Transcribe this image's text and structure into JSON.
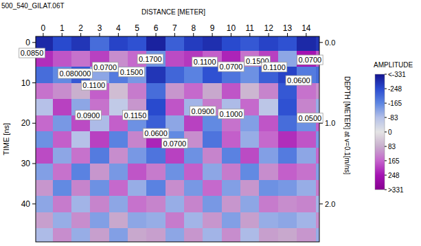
{
  "chart_data": {
    "type": "heatmap",
    "title": "500_540_GILAT.06T",
    "x_label": "DISTANCE [METER]",
    "y_label": "TIME [ns]",
    "y2_label": "DEPTH [METER] at v=0.1[m/ns]",
    "xlim": [
      -0.4,
      14.7
    ],
    "xticks": [
      0,
      1,
      2,
      3,
      4,
      5,
      6,
      7,
      8,
      9,
      10,
      11,
      12,
      13,
      14
    ],
    "ylim": [
      -1.5,
      49.4
    ],
    "yticks": [
      0,
      10,
      20,
      30,
      40
    ],
    "y2lim": [
      -0.075,
      2.47
    ],
    "y2ticks": [
      {
        "value": 0,
        "label": "0.0"
      },
      {
        "value": 1,
        "label": "1.0"
      },
      {
        "value": 2,
        "label": "2.0"
      }
    ],
    "x": [
      0,
      1,
      2,
      3,
      4,
      5,
      6,
      7,
      8,
      9,
      10,
      11,
      12,
      13,
      14,
      15
    ],
    "y": [
      0,
      4,
      8,
      12,
      16,
      20,
      24,
      28,
      32,
      36,
      40,
      44,
      48
    ],
    "cells": [
      [
        -300,
        -250,
        -280,
        -200,
        -260,
        -240,
        -310,
        -220,
        -270,
        -290,
        -250,
        -230,
        -260,
        -240,
        -300,
        -280
      ],
      [
        220,
        180,
        150,
        200,
        120,
        160,
        -150,
        190,
        210,
        170,
        230,
        150,
        200,
        -120,
        250,
        180
      ],
      [
        -200,
        -160,
        -230,
        -120,
        -180,
        -140,
        -280,
        -210,
        -170,
        -240,
        -190,
        -150,
        -220,
        -260,
        -180,
        -200
      ],
      [
        150,
        120,
        80,
        170,
        60,
        140,
        -200,
        110,
        160,
        90,
        180,
        70,
        130,
        -230,
        150,
        120
      ],
      [
        -80,
        200,
        -120,
        150,
        -60,
        110,
        -250,
        180,
        -100,
        140,
        -90,
        160,
        -70,
        -240,
        130,
        -110
      ],
      [
        160,
        -140,
        190,
        -90,
        170,
        -150,
        -220,
        -120,
        200,
        -160,
        150,
        -130,
        180,
        -200,
        -150,
        170
      ],
      [
        -150,
        170,
        -80,
        200,
        -170,
        130,
        230,
        -160,
        120,
        -190,
        170,
        -110,
        160,
        220,
        180,
        -140
      ],
      [
        190,
        -120,
        150,
        -180,
        120,
        -140,
        -190,
        200,
        -150,
        130,
        -170,
        190,
        -130,
        -180,
        -120,
        160
      ],
      [
        -130,
        150,
        -170,
        110,
        -140,
        180,
        140,
        -150,
        170,
        -120,
        140,
        -160,
        120,
        170,
        150,
        -130
      ],
      [
        110,
        -160,
        130,
        -150,
        160,
        -110,
        -170,
        120,
        -140,
        160,
        -130,
        110,
        -150,
        -140,
        -110,
        140
      ],
      [
        -120,
        140,
        -100,
        130,
        -120,
        150,
        130,
        -110,
        130,
        -140,
        110,
        -120,
        140,
        120,
        130,
        -100
      ],
      [
        100,
        -110,
        120,
        -130,
        90,
        -120,
        -110,
        140,
        -100,
        110,
        -130,
        100,
        -110,
        -120,
        -100,
        120
      ],
      [
        -90,
        120,
        -110,
        100,
        -130,
        90,
        100,
        -120,
        110,
        -100,
        120,
        -90,
        100,
        90,
        110,
        -110
      ]
    ],
    "colorbar": {
      "title": "AMPLITUDE",
      "range": [
        -331,
        331
      ],
      "ticks": [
        {
          "value": -331,
          "label": "<-331"
        },
        -248,
        -165,
        -83,
        0,
        83,
        165,
        248,
        {
          "value": 331,
          "label": ">331"
        }
      ],
      "colors": [
        "#14148f",
        "#2a4bd0",
        "#5d86e2",
        "#b4c0e8",
        "#e4e4e4",
        "#c8aecd",
        "#c564cc",
        "#a512b3",
        "#860090"
      ]
    },
    "annotations": [
      {
        "x": -0.6,
        "y": 2.6,
        "text": "0.0850"
      },
      {
        "x": 1.7,
        "y": 7.7,
        "text": "0.080000"
      },
      {
        "x": 3.3,
        "y": 6.1,
        "text": "0.0700"
      },
      {
        "x": 4.7,
        "y": 7.3,
        "text": "0.1500"
      },
      {
        "x": 2.7,
        "y": 10.6,
        "text": "0.1100"
      },
      {
        "x": 5.7,
        "y": 4.1,
        "text": "0.1700"
      },
      {
        "x": 8.6,
        "y": 4.8,
        "text": "0.1100"
      },
      {
        "x": 10.0,
        "y": 6.0,
        "text": "0.0700"
      },
      {
        "x": 11.4,
        "y": 4.6,
        "text": "0.1500"
      },
      {
        "x": 12.3,
        "y": 6.1,
        "text": "0.1100"
      },
      {
        "x": 14.2,
        "y": 4.3,
        "text": "0.0700"
      },
      {
        "x": 13.6,
        "y": 9.4,
        "text": "0.0600"
      },
      {
        "x": 2.4,
        "y": 18.0,
        "text": "0.0900"
      },
      {
        "x": 4.9,
        "y": 18.0,
        "text": "0.1150"
      },
      {
        "x": 8.5,
        "y": 17.0,
        "text": "0.0900"
      },
      {
        "x": 10.0,
        "y": 17.7,
        "text": "0.1000"
      },
      {
        "x": 14.2,
        "y": 18.7,
        "text": "0.0500"
      },
      {
        "x": 6.0,
        "y": 22.5,
        "text": "0.0600"
      },
      {
        "x": 7.0,
        "y": 25.0,
        "text": "0.0700"
      }
    ]
  }
}
